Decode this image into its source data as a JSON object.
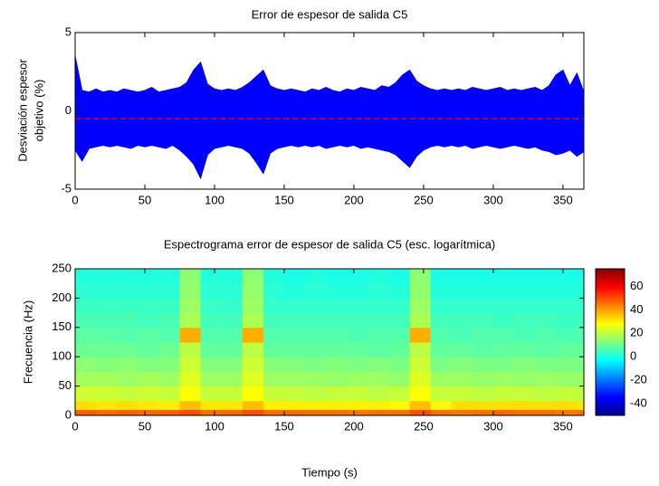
{
  "chart_data": [
    {
      "type": "line",
      "title": "Error de espesor de salida C5",
      "ylabel": [
        "Desviación espesor",
        "objetivo (%)"
      ],
      "xlim": [
        0,
        365
      ],
      "ylim": [
        -5,
        5
      ],
      "xticks": [
        0,
        50,
        100,
        150,
        200,
        250,
        300,
        350
      ],
      "yticks": [
        -5,
        0,
        5
      ],
      "x": [
        0,
        5,
        10,
        15,
        20,
        25,
        30,
        35,
        40,
        45,
        50,
        55,
        60,
        65,
        70,
        75,
        80,
        85,
        90,
        95,
        100,
        105,
        110,
        115,
        120,
        125,
        130,
        135,
        140,
        145,
        150,
        155,
        160,
        165,
        170,
        175,
        180,
        185,
        190,
        195,
        200,
        205,
        210,
        215,
        220,
        225,
        230,
        235,
        240,
        245,
        250,
        255,
        260,
        265,
        270,
        275,
        280,
        285,
        290,
        295,
        300,
        305,
        310,
        315,
        320,
        325,
        330,
        335,
        340,
        345,
        350,
        355,
        360,
        365
      ],
      "series": [
        {
          "color": "#0000ff",
          "values": [
            3.5,
            1.3,
            1.2,
            1.4,
            1.2,
            1.3,
            1.2,
            1.4,
            1.3,
            1.2,
            1.3,
            1.5,
            1.2,
            1.3,
            1.4,
            1.5,
            1.8,
            2.6,
            3.1,
            1.7,
            1.4,
            1.3,
            1.4,
            1.3,
            1.5,
            1.8,
            2.2,
            2.6,
            1.6,
            1.4,
            1.3,
            1.4,
            1.3,
            1.2,
            1.4,
            1.3,
            1.5,
            1.3,
            1.2,
            1.4,
            1.3,
            1.5,
            1.4,
            1.3,
            1.6,
            1.5,
            1.8,
            2.3,
            2.6,
            1.9,
            1.6,
            1.4,
            1.3,
            1.4,
            1.3,
            1.4,
            1.3,
            1.5,
            1.4,
            1.3,
            1.4,
            1.5,
            1.3,
            1.4,
            1.3,
            1.4,
            1.5,
            1.3,
            1.6,
            2.3,
            2.6,
            1.6,
            2.4,
            1.2
          ]
        },
        {
          "color": "#0000ff",
          "values": [
            -2.5,
            -3.2,
            -2.4,
            -2.3,
            -2.2,
            -2.3,
            -2.2,
            -2.3,
            -2.4,
            -2.2,
            -2.3,
            -2.2,
            -2.3,
            -2.4,
            -2.2,
            -2.5,
            -2.9,
            -3.4,
            -4.3,
            -2.8,
            -2.4,
            -2.3,
            -2.2,
            -2.3,
            -2.4,
            -2.7,
            -3.3,
            -4.0,
            -2.7,
            -2.4,
            -2.3,
            -2.2,
            -2.3,
            -2.2,
            -2.3,
            -2.2,
            -2.4,
            -2.3,
            -2.2,
            -2.3,
            -2.2,
            -2.4,
            -2.3,
            -2.4,
            -2.5,
            -2.6,
            -2.8,
            -3.2,
            -3.6,
            -2.9,
            -2.5,
            -2.3,
            -2.2,
            -2.3,
            -2.2,
            -2.3,
            -2.2,
            -2.4,
            -2.3,
            -2.2,
            -2.3,
            -2.4,
            -2.3,
            -2.2,
            -2.3,
            -2.4,
            -2.3,
            -2.5,
            -2.6,
            -2.8,
            -2.7,
            -2.5,
            -2.9,
            -2.6
          ]
        }
      ],
      "hline": {
        "value": -0.5,
        "color": "#ff0000",
        "style": "dashed"
      }
    },
    {
      "type": "heatmap",
      "title": "Espectrograma error de espesor de salida C5 (esc. logarítmica)",
      "xlabel": "Tiempo (s)",
      "ylabel": "Frecuencia (Hz)",
      "xlim": [
        0,
        365
      ],
      "ylim": [
        0,
        250
      ],
      "xticks": [
        0,
        50,
        100,
        150,
        200,
        250,
        300,
        350
      ],
      "yticks": [
        0,
        50,
        100,
        150,
        200,
        250
      ],
      "x_edges": [
        0,
        15,
        30,
        45,
        60,
        75,
        90,
        105,
        120,
        135,
        150,
        165,
        180,
        195,
        210,
        225,
        240,
        255,
        270,
        285,
        300,
        315,
        330,
        345,
        360,
        365
      ],
      "y_edges": [
        0,
        10,
        25,
        50,
        75,
        100,
        125,
        150,
        175,
        200,
        225,
        250
      ],
      "colormap": "jet",
      "clim": [
        -50,
        75
      ],
      "colorbar_ticks": [
        -40,
        -20,
        0,
        20,
        40,
        60
      ],
      "z": [
        [
          48,
          47,
          48,
          47,
          48,
          50,
          46,
          47,
          50,
          46,
          47,
          46,
          46,
          45,
          46,
          46,
          50,
          46,
          45,
          46,
          47,
          46,
          46,
          45,
          46
        ],
        [
          32,
          31,
          32,
          31,
          30,
          36,
          31,
          31,
          36,
          30,
          30,
          30,
          30,
          30,
          30,
          29,
          36,
          29,
          32,
          32,
          32,
          32,
          32,
          32,
          31
        ],
        [
          22,
          22,
          21,
          22,
          21,
          28,
          21,
          21,
          28,
          21,
          21,
          20,
          21,
          21,
          20,
          21,
          28,
          21,
          21,
          20,
          21,
          21,
          20,
          21,
          20
        ],
        [
          17,
          17,
          16,
          17,
          16,
          24,
          16,
          16,
          24,
          16,
          16,
          16,
          15,
          16,
          16,
          15,
          24,
          16,
          16,
          15,
          16,
          15,
          16,
          15,
          16
        ],
        [
          14,
          13,
          14,
          13,
          13,
          22,
          13,
          13,
          22,
          13,
          13,
          12,
          13,
          12,
          13,
          12,
          22,
          12,
          13,
          12,
          12,
          13,
          12,
          12,
          12
        ],
        [
          10,
          10,
          10,
          9,
          10,
          20,
          9,
          9,
          20,
          9,
          9,
          9,
          9,
          9,
          8,
          9,
          20,
          9,
          9,
          8,
          9,
          9,
          8,
          9,
          9
        ],
        [
          8,
          8,
          7,
          8,
          7,
          38,
          7,
          7,
          38,
          7,
          7,
          7,
          7,
          6,
          7,
          7,
          38,
          7,
          6,
          7,
          7,
          6,
          7,
          6,
          7
        ],
        [
          6,
          6,
          6,
          5,
          6,
          18,
          5,
          5,
          18,
          5,
          5,
          5,
          5,
          5,
          5,
          5,
          18,
          5,
          5,
          5,
          4,
          5,
          5,
          4,
          5
        ],
        [
          4,
          4,
          4,
          4,
          4,
          16,
          4,
          3,
          16,
          3,
          3,
          3,
          3,
          3,
          3,
          3,
          16,
          3,
          3,
          3,
          3,
          3,
          3,
          3,
          3
        ],
        [
          2,
          2,
          2,
          2,
          2,
          15,
          2,
          2,
          15,
          2,
          1,
          2,
          1,
          1,
          2,
          1,
          15,
          1,
          1,
          1,
          1,
          1,
          1,
          1,
          1
        ],
        [
          1,
          1,
          1,
          1,
          1,
          14,
          1,
          1,
          14,
          1,
          0,
          1,
          0,
          0,
          1,
          0,
          14,
          0,
          0,
          0,
          0,
          0,
          0,
          0,
          0
        ]
      ]
    }
  ]
}
